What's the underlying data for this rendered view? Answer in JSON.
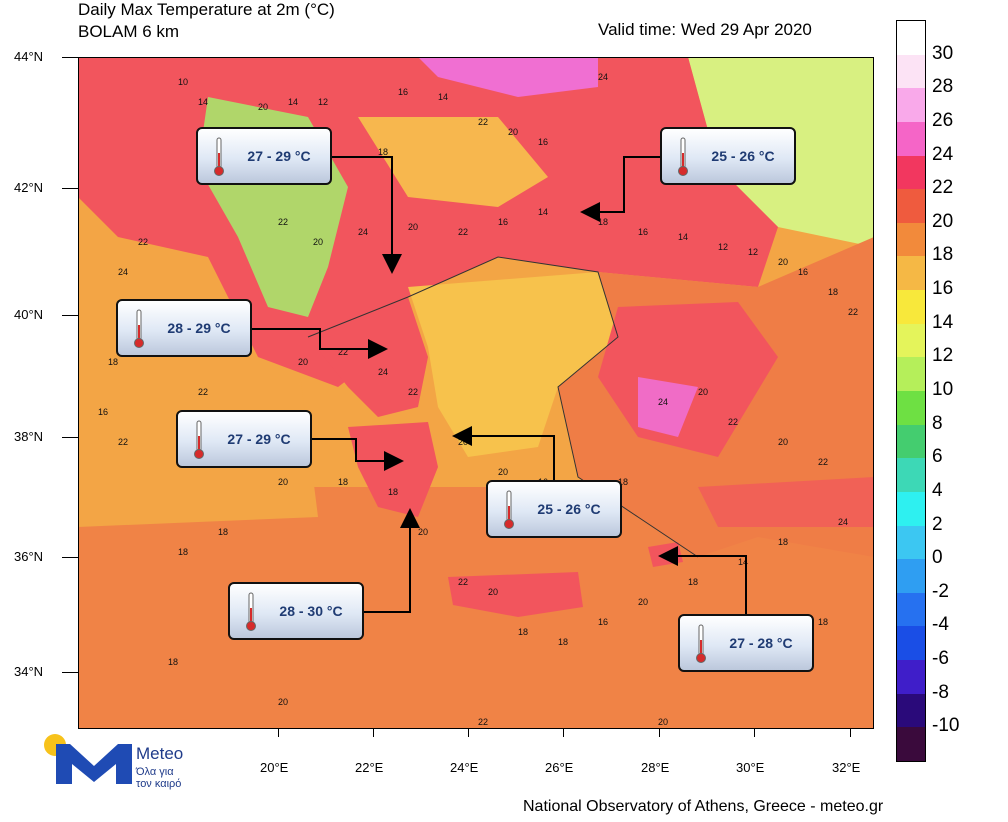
{
  "header": {
    "title_line1": "Daily Max Temperature at 2m (°C)",
    "title_line2": "BOLAM 6 km",
    "valid_time": "Valid time: Wed 29 Apr 2020"
  },
  "map": {
    "lat_labels": [
      "44°N",
      "42°N",
      "40°N",
      "38°N",
      "36°N",
      "34°N"
    ],
    "lon_labels": [
      "20°E",
      "22°E",
      "24°E",
      "26°E",
      "28°E",
      "30°E",
      "32°E"
    ],
    "field_colors": {
      "land_24_26": "#f0486c",
      "land_22_24": "#f2555d",
      "land_20_22": "#ef7d46",
      "sea_18_20": "#f3a545",
      "sea_16_18": "#f7c24c",
      "cold_12_14": "#d8f081",
      "cold_14_16": "#f2e85a",
      "hot_26_28": "#f06fd2"
    },
    "contour_labels": [
      "10",
      "14",
      "20",
      "14",
      "12",
      "16",
      "14",
      "24",
      "22",
      "20",
      "16",
      "18",
      "22",
      "24",
      "22",
      "20",
      "24",
      "20",
      "22",
      "16",
      "14",
      "18",
      "16",
      "14",
      "12",
      "12",
      "20",
      "16",
      "18",
      "22",
      "22",
      "24",
      "20",
      "18",
      "16",
      "22",
      "22",
      "16",
      "20",
      "22",
      "24",
      "22",
      "20",
      "20",
      "16",
      "18",
      "18",
      "24",
      "20",
      "22",
      "20",
      "22",
      "24",
      "18",
      "14",
      "18",
      "20",
      "16",
      "18",
      "18",
      "20",
      "22",
      "20",
      "18",
      "18",
      "20",
      "18",
      "18",
      "18",
      "20",
      "22",
      "20",
      "18",
      "18"
    ]
  },
  "callouts": [
    {
      "text": "27 - 29 °C",
      "icon": "thermometer-icon"
    },
    {
      "text": "25 - 26 °C",
      "icon": "thermometer-icon"
    },
    {
      "text": "28 - 29 °C",
      "icon": "thermometer-icon"
    },
    {
      "text": "27 - 29 °C",
      "icon": "thermometer-icon"
    },
    {
      "text": "25 - 26 °C",
      "icon": "thermometer-icon"
    },
    {
      "text": "28 - 30 °C",
      "icon": "thermometer-icon"
    },
    {
      "text": "27 - 28 °C",
      "icon": "thermometer-icon"
    }
  ],
  "colorbar": {
    "labels": [
      "30",
      "28",
      "26",
      "24",
      "22",
      "20",
      "18",
      "16",
      "14",
      "12",
      "10",
      "8",
      "6",
      "4",
      "2",
      "0",
      "-2",
      "-4",
      "-6",
      "-8",
      "-10"
    ],
    "colors": [
      "#ffffff",
      "#fce3f5",
      "#f9a9ea",
      "#f565c7",
      "#f2375f",
      "#ef5b3e",
      "#f28a3b",
      "#f5b845",
      "#f8e83b",
      "#e4f45b",
      "#b5ef5a",
      "#6ee043",
      "#44cd6f",
      "#3dd8b6",
      "#2ef0f0",
      "#3cc7f2",
      "#2f9ef2",
      "#2671f0",
      "#1a4ee6",
      "#3f1ec9",
      "#2a0a7a",
      "#3a0a3c"
    ]
  },
  "logo": {
    "name": "Meteo",
    "tagline_line1": "Όλα για",
    "tagline_line2": "τον καιρό"
  },
  "footer": {
    "credit": "National Observatory of Athens, Greece - meteo.gr"
  }
}
